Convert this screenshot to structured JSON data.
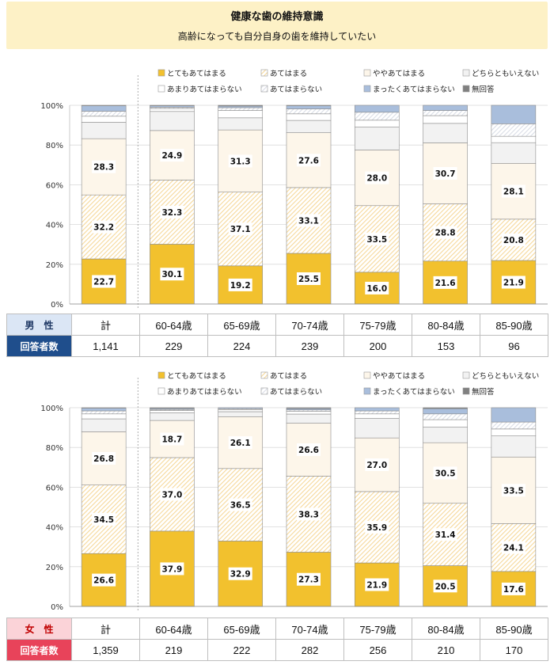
{
  "title": "健康な歯の維持意識",
  "subtitle": "高齢になっても自分自身の歯を維持していたい",
  "legend": [
    {
      "label": "とてもあてはまる",
      "color": "#f2c12e",
      "pattern": "solid"
    },
    {
      "label": "あてはまる",
      "color": "#f6d89a",
      "pattern": "hatch"
    },
    {
      "label": "ややあてはまる",
      "color": "#fdf6ea",
      "pattern": "solid"
    },
    {
      "label": "どちらともいえない",
      "color": "#f2f2f2",
      "pattern": "solid"
    },
    {
      "label": "あまりあてはまらない",
      "color": "#ffffff",
      "pattern": "solid"
    },
    {
      "label": "あてはまらない",
      "color": "#d9dde6",
      "pattern": "hatch"
    },
    {
      "label": "まったくあてはまらない",
      "color": "#a9bedc",
      "pattern": "solid"
    },
    {
      "label": "無回答",
      "color": "#808080",
      "pattern": "solid"
    }
  ],
  "chart_data": [
    {
      "type": "bar",
      "stacked": true,
      "panel": "male",
      "categories": [
        "計",
        "60-64歳",
        "65-69歳",
        "70-74歳",
        "75-79歳",
        "80-84歳",
        "85-90歳"
      ],
      "yticks": [
        "0%",
        "20%",
        "40%",
        "60%",
        "80%",
        "100%"
      ],
      "ylim": [
        0,
        100
      ],
      "grid": true,
      "legend_position": "top",
      "series": [
        {
          "name": "とてもあてはまる",
          "values": [
            22.7,
            30.1,
            19.2,
            25.5,
            16.0,
            21.6,
            21.9
          ]
        },
        {
          "name": "あてはまる",
          "values": [
            32.2,
            32.3,
            37.1,
            33.1,
            33.5,
            28.8,
            20.8
          ]
        },
        {
          "name": "ややあてはまる",
          "values": [
            28.3,
            24.9,
            31.3,
            27.6,
            28.0,
            30.7,
            28.1
          ]
        },
        {
          "name": "どちらともいえない",
          "values": [
            8.3,
            9.6,
            6.1,
            6.2,
            11.5,
            9.8,
            10.4
          ]
        },
        {
          "name": "あまりあてはまらない",
          "values": [
            3.0,
            1.5,
            3.7,
            3.3,
            3.5,
            3.9,
            3.2
          ]
        },
        {
          "name": "あてはまらない",
          "values": [
            2.5,
            0.6,
            1.4,
            2.5,
            4.0,
            2.6,
            6.3
          ]
        },
        {
          "name": "まったくあてはまらない",
          "values": [
            2.8,
            0.8,
            0.8,
            1.6,
            3.5,
            2.6,
            9.3
          ]
        },
        {
          "name": "無回答",
          "values": [
            0.2,
            0.2,
            0.4,
            0.2,
            0.0,
            0.0,
            0.0
          ]
        }
      ],
      "data_labels": [
        {
          "series": 0,
          "values": [
            "22.7",
            "30.1",
            "19.2",
            "25.5",
            "16.0",
            "21.6",
            "21.9"
          ]
        },
        {
          "series": 1,
          "values": [
            "32.2",
            "32.3",
            "37.1",
            "33.1",
            "33.5",
            "28.8",
            "20.8"
          ]
        },
        {
          "series": 2,
          "values": [
            "28.3",
            "24.9",
            "31.3",
            "27.6",
            "28.0",
            "30.7",
            "28.1"
          ]
        }
      ]
    },
    {
      "type": "bar",
      "stacked": true,
      "panel": "female",
      "categories": [
        "計",
        "60-64歳",
        "65-69歳",
        "70-74歳",
        "75-79歳",
        "80-84歳",
        "85-90歳"
      ],
      "yticks": [
        "0%",
        "20%",
        "40%",
        "60%",
        "80%",
        "100%"
      ],
      "ylim": [
        0,
        100
      ],
      "grid": true,
      "legend_position": "top",
      "series": [
        {
          "name": "とてもあてはまる",
          "values": [
            26.6,
            37.9,
            32.9,
            27.3,
            21.9,
            20.5,
            17.6
          ]
        },
        {
          "name": "あてはまる",
          "values": [
            34.5,
            37.0,
            36.5,
            38.3,
            35.9,
            31.4,
            24.1
          ]
        },
        {
          "name": "ややあてはまる",
          "values": [
            26.8,
            18.7,
            26.1,
            26.6,
            27.0,
            30.5,
            33.5
          ]
        },
        {
          "name": "どちらともいえない",
          "values": [
            6.5,
            3.8,
            2.5,
            4.6,
            9.8,
            7.8,
            10.6
          ]
        },
        {
          "name": "あまりあてはまらない",
          "values": [
            2.5,
            1.2,
            1.1,
            1.4,
            2.3,
            3.8,
            3.5
          ]
        },
        {
          "name": "あてはまらない",
          "values": [
            1.5,
            0.5,
            0.4,
            0.7,
            1.5,
            2.9,
            3.5
          ]
        },
        {
          "name": "まったくあてはまらない",
          "values": [
            1.4,
            0.5,
            0.5,
            0.7,
            1.6,
            2.6,
            7.2
          ]
        },
        {
          "name": "無回答",
          "values": [
            0.2,
            0.4,
            0.0,
            0.4,
            0.0,
            0.5,
            0.0
          ]
        }
      ],
      "data_labels": [
        {
          "series": 0,
          "values": [
            "26.6",
            "37.9",
            "32.9",
            "27.3",
            "21.9",
            "20.5",
            "17.6"
          ]
        },
        {
          "series": 1,
          "values": [
            "34.5",
            "37.0",
            "36.5",
            "38.3",
            "35.9",
            "31.4",
            "24.1"
          ]
        },
        {
          "series": 2,
          "values": [
            "26.8",
            "18.7",
            "26.1",
            "26.6",
            "27.0",
            "30.5",
            "33.5"
          ]
        }
      ]
    }
  ],
  "tables": [
    {
      "gender_label": "男　性",
      "count_label": "回答者数",
      "categories": [
        "計",
        "60-64歳",
        "65-69歳",
        "70-74歳",
        "75-79歳",
        "80-84歳",
        "85-90歳"
      ],
      "counts": [
        "1,141",
        "229",
        "224",
        "239",
        "200",
        "153",
        "96"
      ]
    },
    {
      "gender_label": "女　性",
      "count_label": "回答者数",
      "categories": [
        "計",
        "60-64歳",
        "65-69歳",
        "70-74歳",
        "75-79歳",
        "80-84歳",
        "85-90歳"
      ],
      "counts": [
        "1,359",
        "219",
        "222",
        "282",
        "256",
        "210",
        "170"
      ]
    }
  ]
}
